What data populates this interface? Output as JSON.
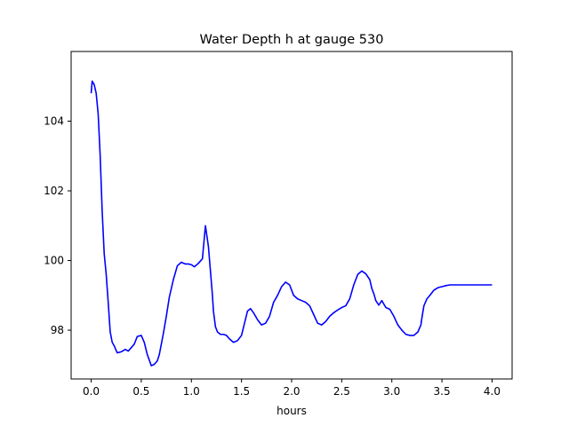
{
  "chart_data": {
    "type": "line",
    "title": "Water Depth h at gauge 530",
    "xlabel": "hours",
    "ylabel": "",
    "xlim": [
      -0.2,
      4.2
    ],
    "ylim": [
      96.6,
      106.0
    ],
    "x_ticks": [
      0.0,
      0.5,
      1.0,
      1.5,
      2.0,
      2.5,
      3.0,
      3.5,
      4.0
    ],
    "x_tick_labels": [
      "0.0",
      "0.5",
      "1.0",
      "1.5",
      "2.0",
      "2.5",
      "3.0",
      "3.5",
      "4.0"
    ],
    "y_ticks": [
      98,
      100,
      102,
      104
    ],
    "y_tick_labels": [
      "98",
      "100",
      "102",
      "104"
    ],
    "grid": false,
    "series": [
      {
        "color": "#0000ff",
        "x": [
          0.0,
          0.01,
          0.03,
          0.05,
          0.07,
          0.09,
          0.11,
          0.13,
          0.15,
          0.17,
          0.19,
          0.21,
          0.23,
          0.26,
          0.3,
          0.34,
          0.37,
          0.4,
          0.43,
          0.46,
          0.5,
          0.53,
          0.56,
          0.6,
          0.63,
          0.66,
          0.68,
          0.72,
          0.75,
          0.78,
          0.82,
          0.86,
          0.9,
          0.94,
          0.97,
          1.0,
          1.03,
          1.07,
          1.11,
          1.14,
          1.17,
          1.19,
          1.21,
          1.22,
          1.24,
          1.26,
          1.29,
          1.32,
          1.35,
          1.38,
          1.42,
          1.46,
          1.5,
          1.53,
          1.56,
          1.59,
          1.62,
          1.66,
          1.7,
          1.74,
          1.78,
          1.82,
          1.86,
          1.9,
          1.94,
          1.98,
          2.02,
          2.06,
          2.1,
          2.14,
          2.18,
          2.22,
          2.26,
          2.3,
          2.34,
          2.38,
          2.42,
          2.46,
          2.5,
          2.54,
          2.58,
          2.62,
          2.66,
          2.7,
          2.74,
          2.78,
          2.8,
          2.82,
          2.84,
          2.87,
          2.9,
          2.94,
          2.98,
          3.02,
          3.06,
          3.1,
          3.14,
          3.18,
          3.22,
          3.26,
          3.29,
          3.3,
          3.32,
          3.35,
          3.38,
          3.42,
          3.46,
          3.5,
          3.54,
          3.58,
          3.62,
          3.66,
          3.7,
          3.74,
          3.78,
          3.82,
          3.86,
          3.88,
          3.9,
          3.92,
          3.95,
          3.98,
          4.0
        ],
        "y": [
          104.8,
          105.15,
          105.05,
          104.8,
          104.2,
          103.0,
          101.4,
          100.2,
          99.6,
          98.8,
          97.95,
          97.65,
          97.55,
          97.35,
          97.38,
          97.45,
          97.4,
          97.5,
          97.6,
          97.82,
          97.85,
          97.65,
          97.3,
          96.98,
          97.02,
          97.12,
          97.3,
          97.9,
          98.4,
          98.95,
          99.45,
          99.85,
          99.95,
          99.9,
          99.9,
          99.88,
          99.82,
          99.92,
          100.05,
          101.0,
          100.4,
          99.7,
          99.0,
          98.55,
          98.1,
          97.95,
          97.88,
          97.88,
          97.85,
          97.75,
          97.65,
          97.7,
          97.85,
          98.2,
          98.55,
          98.62,
          98.5,
          98.3,
          98.15,
          98.2,
          98.4,
          98.8,
          99.0,
          99.25,
          99.38,
          99.3,
          99.0,
          98.9,
          98.85,
          98.8,
          98.7,
          98.45,
          98.2,
          98.15,
          98.25,
          98.4,
          98.5,
          98.58,
          98.65,
          98.7,
          98.9,
          99.3,
          99.6,
          99.7,
          99.62,
          99.45,
          99.2,
          99.05,
          98.85,
          98.72,
          98.85,
          98.65,
          98.6,
          98.4,
          98.15,
          98.0,
          97.88,
          97.85,
          97.85,
          97.95,
          98.15,
          98.35,
          98.7,
          98.9,
          99.0,
          99.15,
          99.22,
          99.25,
          99.28,
          99.3,
          99.3,
          99.3,
          99.3,
          99.3,
          99.3,
          99.3,
          99.3,
          99.3,
          99.3,
          99.3,
          99.3,
          99.3,
          99.3
        ]
      }
    ]
  }
}
